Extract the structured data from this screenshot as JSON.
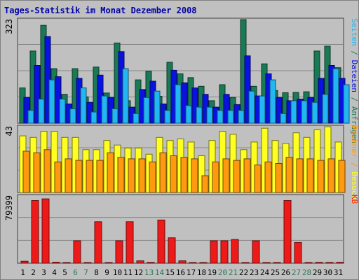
{
  "title": "Tages-Statistik im Monat Dezember 2008",
  "chart_data": {
    "type": "bar",
    "title": "Tages-Statistik im Monat Dezember 2008",
    "days": [
      "1",
      "2",
      "3",
      "4",
      "5",
      "6",
      "7",
      "8",
      "9",
      "10",
      "11",
      "12",
      "13",
      "14",
      "15",
      "16",
      "17",
      "18",
      "19",
      "20",
      "21",
      "22",
      "23",
      "24",
      "25",
      "26",
      "27",
      "28",
      "29",
      "30",
      "31"
    ],
    "weekend_days": [
      "6",
      "7",
      "13",
      "14",
      "20",
      "21",
      "27",
      "28"
    ],
    "colors": {
      "anfragen": "#1a7a56",
      "dateien": "#0a12e0",
      "seiten": "#22b6f2",
      "besuche": "#ffff22",
      "rechner": "#ff9a10",
      "kb": "#ee1a1a",
      "weekday_label": "#000000",
      "weekend_label": "#2a7a56"
    },
    "panels": [
      {
        "name": "top",
        "max_label": "323",
        "ylim": [
          0,
          323
        ],
        "right_label": {
          "parts": [
            {
              "text": "Seiten",
              "color": "#22b6f2"
            },
            {
              "text": " / ",
              "color": "#1a7a56"
            },
            {
              "text": "Dateien",
              "color": "#0a12e0"
            },
            {
              "text": " / ",
              "color": "#1a7a56"
            },
            {
              "text": "Anfragen",
              "color": "#1a7a56"
            }
          ]
        },
        "series": [
          {
            "name": "Anfragen",
            "color": "#1a7a56",
            "values": [
              110,
              225,
              305,
              170,
              90,
              170,
              82,
              175,
              94,
              250,
              70,
              135,
              162,
              84,
              190,
              154,
              142,
              115,
              70,
              120,
              80,
              323,
              115,
              185,
              102,
              95,
              96,
              98,
              225,
              240,
              173
            ]
          },
          {
            "name": "Dateien",
            "color": "#0a12e0",
            "values": [
              80,
              180,
              270,
              145,
              60,
              140,
              65,
              150,
              80,
              223,
              50,
              105,
              131,
              60,
              165,
              126,
              110,
              90,
              50,
              90,
              58,
              210,
              85,
              154,
              80,
              70,
              75,
              80,
              140,
              180,
              140
            ]
          },
          {
            "name": "Seiten",
            "color": "#22b6f2",
            "values": [
              40,
              75,
              135,
              75,
              45,
              110,
              35,
              85,
              45,
              170,
              30,
              80,
              100,
              40,
              120,
              55,
              50,
              50,
              40,
              40,
              40,
              100,
              85,
              135,
              30,
              70,
              70,
              65,
              90,
              170,
              120
            ]
          }
        ]
      },
      {
        "name": "middle",
        "max_label": "43",
        "ylim": [
          0,
          43
        ],
        "right_label": {
          "parts": [
            {
              "text": "Rechner",
              "color": "#ff9a10"
            },
            {
              "text": " / ",
              "color": "#ff9a10"
            },
            {
              "text": "Besuche",
              "color": "#ffff22"
            }
          ]
        },
        "series": [
          {
            "name": "Besuche",
            "color": "#ffff22",
            "values": [
              37,
              36,
              40,
              40,
              36,
              36,
              28,
              28,
              34,
              31,
              29,
              29,
              25,
              36,
              34,
              35,
              33,
              24,
              34,
              40,
              38,
              28,
              33,
              42,
              34,
              32,
              39,
              36,
              41,
              43,
              33
            ]
          },
          {
            "name": "Rechner",
            "color": "#ff9a10",
            "values": [
              27,
              26,
              28,
              20,
              22,
              21,
              21,
              21,
              26,
              23,
              22,
              22,
              20,
              26,
              24,
              23,
              22,
              11,
              20,
              22,
              21,
              22,
              18,
              20,
              19,
              23,
              22,
              22,
              21,
              22,
              21
            ]
          }
        ]
      },
      {
        "name": "bottom",
        "max_label": "79399",
        "ylim": [
          0,
          79399
        ],
        "right_label": {
          "parts": [
            {
              "text": "KB",
              "color": "#ee1a1a"
            }
          ]
        },
        "series": [
          {
            "name": "KB",
            "color": "#ee1a1a",
            "values": [
              2300,
              74000,
              76000,
              1200,
              500,
              26500,
              500,
              49000,
              800,
              26500,
              49000,
              2800,
              1000,
              51000,
              30000,
              2800,
              800,
              400,
              26500,
              26500,
              28000,
              500,
              26500,
              500,
              500,
              74000,
              24500,
              700,
              1000,
              900,
              1100
            ]
          }
        ]
      }
    ]
  }
}
